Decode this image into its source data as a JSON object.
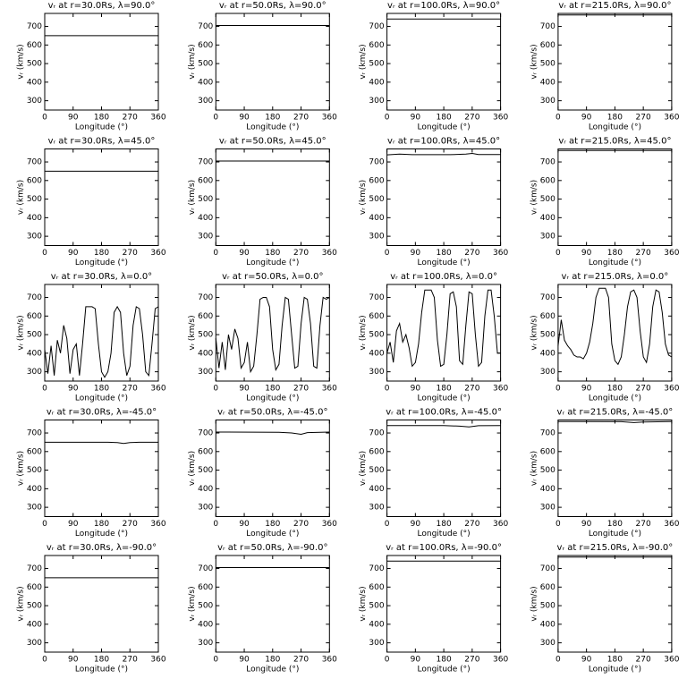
{
  "chart_data": [
    {
      "type": "line",
      "title": "vᵣ at r=30.0Rs, λ=90.0°",
      "xlabel": "Longitude (°)",
      "ylabel": "vᵣ (km/s)",
      "xlim": [
        0,
        360
      ],
      "xticks": [
        0,
        90,
        180,
        270,
        360
      ],
      "ylim": [
        250,
        770
      ],
      "yticks": [
        300,
        400,
        500,
        600,
        700
      ],
      "color": "#000000",
      "x": [
        0,
        360
      ],
      "values": [
        650,
        650
      ]
    },
    {
      "type": "line",
      "title": "vᵣ at r=50.0Rs, λ=90.0°",
      "xlabel": "Longitude (°)",
      "ylabel": "vᵣ (km/s)",
      "xlim": [
        0,
        360
      ],
      "xticks": [
        0,
        90,
        180,
        270,
        360
      ],
      "ylim": [
        250,
        770
      ],
      "yticks": [
        300,
        400,
        500,
        600,
        700
      ],
      "color": "#000000",
      "x": [
        0,
        360
      ],
      "values": [
        705,
        705
      ]
    },
    {
      "type": "line",
      "title": "vᵣ at r=100.0Rs, λ=90.0°",
      "xlabel": "Longitude (°)",
      "ylabel": "vᵣ (km/s)",
      "xlim": [
        0,
        360
      ],
      "xticks": [
        0,
        90,
        180,
        270,
        360
      ],
      "ylim": [
        250,
        770
      ],
      "yticks": [
        300,
        400,
        500,
        600,
        700
      ],
      "color": "#000000",
      "x": [
        0,
        360
      ],
      "values": [
        740,
        740
      ]
    },
    {
      "type": "line",
      "title": "vᵣ at r=215.0Rs, λ=90.0°",
      "xlabel": "Longitude (°)",
      "ylabel": "vᵣ (km/s)",
      "xlim": [
        0,
        360
      ],
      "xticks": [
        0,
        90,
        180,
        270,
        360
      ],
      "ylim": [
        250,
        770
      ],
      "yticks": [
        300,
        400,
        500,
        600,
        700
      ],
      "color": "#000000",
      "x": [
        0,
        360
      ],
      "values": [
        762,
        762
      ]
    },
    {
      "type": "line",
      "title": "vᵣ at r=30.0Rs, λ=45.0°",
      "xlabel": "Longitude (°)",
      "ylabel": "vᵣ (km/s)",
      "xlim": [
        0,
        360
      ],
      "xticks": [
        0,
        90,
        180,
        270,
        360
      ],
      "ylim": [
        250,
        770
      ],
      "yticks": [
        300,
        400,
        500,
        600,
        700
      ],
      "color": "#000000",
      "x": [
        0,
        360
      ],
      "values": [
        650,
        650
      ]
    },
    {
      "type": "line",
      "title": "vᵣ at r=50.0Rs, λ=45.0°",
      "xlabel": "Longitude (°)",
      "ylabel": "vᵣ (km/s)",
      "xlim": [
        0,
        360
      ],
      "xticks": [
        0,
        90,
        180,
        270,
        360
      ],
      "ylim": [
        250,
        770
      ],
      "yticks": [
        300,
        400,
        500,
        600,
        700
      ],
      "color": "#000000",
      "x": [
        0,
        360
      ],
      "values": [
        705,
        705
      ]
    },
    {
      "type": "line",
      "title": "vᵣ at r=100.0Rs, λ=45.0°",
      "xlabel": "Longitude (°)",
      "ylabel": "vᵣ (km/s)",
      "xlim": [
        0,
        360
      ],
      "xticks": [
        0,
        90,
        180,
        270,
        360
      ],
      "ylim": [
        250,
        770
      ],
      "yticks": [
        300,
        400,
        500,
        600,
        700
      ],
      "color": "#000000",
      "x": [
        0,
        40,
        80,
        200,
        250,
        270,
        290,
        360
      ],
      "values": [
        738,
        742,
        739,
        739,
        742,
        746,
        740,
        740
      ]
    },
    {
      "type": "line",
      "title": "vᵣ at r=215.0Rs, λ=45.0°",
      "xlabel": "Longitude (°)",
      "ylabel": "vᵣ (km/s)",
      "xlim": [
        0,
        360
      ],
      "xticks": [
        0,
        90,
        180,
        270,
        360
      ],
      "ylim": [
        250,
        770
      ],
      "yticks": [
        300,
        400,
        500,
        600,
        700
      ],
      "color": "#000000",
      "x": [
        0,
        360
      ],
      "values": [
        762,
        762
      ]
    },
    {
      "type": "line",
      "title": "vᵣ at r=30.0Rs, λ=0.0°",
      "xlabel": "Longitude (°)",
      "ylabel": "vᵣ (km/s)",
      "xlim": [
        0,
        360
      ],
      "xticks": [
        0,
        90,
        180,
        270,
        360
      ],
      "ylim": [
        250,
        770
      ],
      "yticks": [
        300,
        400,
        500,
        600,
        700
      ],
      "color": "#000000",
      "x": [
        0,
        10,
        20,
        30,
        40,
        50,
        60,
        70,
        80,
        90,
        100,
        110,
        120,
        130,
        140,
        150,
        160,
        170,
        180,
        190,
        200,
        210,
        220,
        230,
        240,
        250,
        260,
        270,
        280,
        290,
        300,
        310,
        320,
        330,
        340,
        350,
        360
      ],
      "values": [
        420,
        290,
        440,
        280,
        470,
        400,
        550,
        480,
        290,
        420,
        450,
        280,
        450,
        650,
        650,
        650,
        640,
        450,
        300,
        270,
        300,
        400,
        620,
        650,
        620,
        400,
        280,
        330,
        550,
        650,
        640,
        500,
        300,
        280,
        450,
        640,
        650
      ]
    },
    {
      "type": "line",
      "title": "vᵣ at r=50.0Rs, λ=0.0°",
      "xlabel": "Longitude (°)",
      "ylabel": "vᵣ (km/s)",
      "xlim": [
        0,
        360
      ],
      "xticks": [
        0,
        90,
        180,
        270,
        360
      ],
      "ylim": [
        250,
        770
      ],
      "yticks": [
        300,
        400,
        500,
        600,
        700
      ],
      "color": "#000000",
      "x": [
        0,
        10,
        20,
        30,
        40,
        50,
        60,
        70,
        80,
        90,
        100,
        110,
        120,
        130,
        140,
        150,
        160,
        170,
        180,
        190,
        200,
        210,
        220,
        230,
        240,
        250,
        260,
        270,
        280,
        290,
        300,
        310,
        320,
        330,
        340,
        350,
        360
      ],
      "values": [
        480,
        320,
        460,
        310,
        500,
        420,
        530,
        480,
        320,
        350,
        460,
        300,
        330,
        500,
        690,
        700,
        700,
        650,
        420,
        310,
        340,
        550,
        700,
        690,
        500,
        320,
        330,
        560,
        700,
        690,
        560,
        330,
        320,
        550,
        700,
        690,
        700
      ]
    },
    {
      "type": "line",
      "title": "vᵣ at r=100.0Rs, λ=0.0°",
      "xlabel": "Longitude (°)",
      "ylabel": "vᵣ (km/s)",
      "xlim": [
        0,
        360
      ],
      "xticks": [
        0,
        90,
        180,
        270,
        360
      ],
      "ylim": [
        250,
        770
      ],
      "yticks": [
        300,
        400,
        500,
        600,
        700
      ],
      "color": "#000000",
      "x": [
        0,
        10,
        20,
        30,
        40,
        50,
        60,
        70,
        80,
        90,
        100,
        110,
        120,
        130,
        140,
        150,
        160,
        170,
        180,
        190,
        200,
        210,
        220,
        230,
        240,
        250,
        260,
        270,
        280,
        290,
        300,
        310,
        320,
        330,
        340,
        350,
        360
      ],
      "values": [
        400,
        460,
        350,
        520,
        560,
        460,
        500,
        430,
        330,
        350,
        450,
        620,
        740,
        740,
        740,
        700,
        470,
        330,
        340,
        500,
        720,
        730,
        650,
        360,
        340,
        550,
        730,
        720,
        500,
        330,
        350,
        600,
        740,
        740,
        600,
        400,
        400
      ]
    },
    {
      "type": "line",
      "title": "vᵣ at r=215.0Rs, λ=0.0°",
      "xlabel": "Longitude (°)",
      "ylabel": "vᵣ (km/s)",
      "xlim": [
        0,
        360
      ],
      "xticks": [
        0,
        90,
        180,
        270,
        360
      ],
      "ylim": [
        250,
        770
      ],
      "yticks": [
        300,
        400,
        500,
        600,
        700
      ],
      "color": "#000000",
      "x": [
        0,
        10,
        20,
        30,
        40,
        50,
        60,
        70,
        80,
        90,
        100,
        110,
        120,
        130,
        140,
        150,
        160,
        170,
        180,
        190,
        200,
        210,
        220,
        230,
        240,
        250,
        260,
        270,
        280,
        290,
        300,
        310,
        320,
        330,
        340,
        350,
        360
      ],
      "values": [
        440,
        580,
        470,
        440,
        420,
        390,
        380,
        380,
        370,
        400,
        460,
        560,
        700,
        750,
        750,
        750,
        700,
        450,
        360,
        340,
        380,
        500,
        650,
        730,
        740,
        700,
        520,
        380,
        350,
        450,
        650,
        740,
        730,
        620,
        450,
        390,
        380
      ]
    },
    {
      "type": "line",
      "title": "vᵣ at r=30.0Rs, λ=-45.0°",
      "xlabel": "Longitude (°)",
      "ylabel": "vᵣ (km/s)",
      "xlim": [
        0,
        360
      ],
      "xticks": [
        0,
        90,
        180,
        270,
        360
      ],
      "ylim": [
        250,
        770
      ],
      "yticks": [
        300,
        400,
        500,
        600,
        700
      ],
      "color": "#000000",
      "x": [
        0,
        200,
        230,
        250,
        270,
        300,
        360
      ],
      "values": [
        650,
        650,
        648,
        644,
        648,
        650,
        650
      ]
    },
    {
      "type": "line",
      "title": "vᵣ at r=50.0Rs, λ=-45.0°",
      "xlabel": "Longitude (°)",
      "ylabel": "vᵣ (km/s)",
      "xlim": [
        0,
        360
      ],
      "xticks": [
        0,
        90,
        180,
        270,
        360
      ],
      "ylim": [
        250,
        770
      ],
      "yticks": [
        300,
        400,
        500,
        600,
        700
      ],
      "color": "#000000",
      "x": [
        0,
        200,
        240,
        270,
        290,
        360
      ],
      "values": [
        705,
        704,
        700,
        693,
        702,
        705
      ]
    },
    {
      "type": "line",
      "title": "vᵣ at r=100.0Rs, λ=-45.0°",
      "xlabel": "Longitude (°)",
      "ylabel": "vᵣ (km/s)",
      "xlim": [
        0,
        360
      ],
      "xticks": [
        0,
        90,
        180,
        270,
        360
      ],
      "ylim": [
        250,
        770
      ],
      "yticks": [
        300,
        400,
        500,
        600,
        700
      ],
      "color": "#000000",
      "x": [
        0,
        180,
        230,
        260,
        290,
        360
      ],
      "values": [
        740,
        740,
        737,
        733,
        739,
        740
      ]
    },
    {
      "type": "line",
      "title": "vᵣ at r=215.0Rs, λ=-45.0°",
      "xlabel": "Longitude (°)",
      "ylabel": "vᵣ (km/s)",
      "xlim": [
        0,
        360
      ],
      "xticks": [
        0,
        90,
        180,
        270,
        360
      ],
      "ylim": [
        250,
        770
      ],
      "yticks": [
        300,
        400,
        500,
        600,
        700
      ],
      "color": "#000000",
      "x": [
        0,
        200,
        240,
        270,
        360
      ],
      "values": [
        762,
        761,
        756,
        759,
        762
      ]
    },
    {
      "type": "line",
      "title": "vᵣ at r=30.0Rs, λ=-90.0°",
      "xlabel": "Longitude (°)",
      "ylabel": "vᵣ (km/s)",
      "xlim": [
        0,
        360
      ],
      "xticks": [
        0,
        90,
        180,
        270,
        360
      ],
      "ylim": [
        250,
        770
      ],
      "yticks": [
        300,
        400,
        500,
        600,
        700
      ],
      "color": "#000000",
      "x": [
        0,
        360
      ],
      "values": [
        650,
        650
      ]
    },
    {
      "type": "line",
      "title": "vᵣ at r=50.0Rs, λ=-90.0°",
      "xlabel": "Longitude (°)",
      "ylabel": "vᵣ (km/s)",
      "xlim": [
        0,
        360
      ],
      "xticks": [
        0,
        90,
        180,
        270,
        360
      ],
      "ylim": [
        250,
        770
      ],
      "yticks": [
        300,
        400,
        500,
        600,
        700
      ],
      "color": "#000000",
      "x": [
        0,
        360
      ],
      "values": [
        705,
        705
      ]
    },
    {
      "type": "line",
      "title": "vᵣ at r=100.0Rs, λ=-90.0°",
      "xlabel": "Longitude (°)",
      "ylabel": "vᵣ (km/s)",
      "xlim": [
        0,
        360
      ],
      "xticks": [
        0,
        90,
        180,
        270,
        360
      ],
      "ylim": [
        250,
        770
      ],
      "yticks": [
        300,
        400,
        500,
        600,
        700
      ],
      "color": "#000000",
      "x": [
        0,
        360
      ],
      "values": [
        740,
        740
      ]
    },
    {
      "type": "line",
      "title": "vᵣ at r=215.0Rs, λ=-90.0°",
      "xlabel": "Longitude (°)",
      "ylabel": "vᵣ (km/s)",
      "xlim": [
        0,
        360
      ],
      "xticks": [
        0,
        90,
        180,
        270,
        360
      ],
      "ylim": [
        250,
        770
      ],
      "yticks": [
        300,
        400,
        500,
        600,
        700
      ],
      "color": "#000000",
      "x": [
        0,
        360
      ],
      "values": [
        762,
        762
      ]
    }
  ]
}
